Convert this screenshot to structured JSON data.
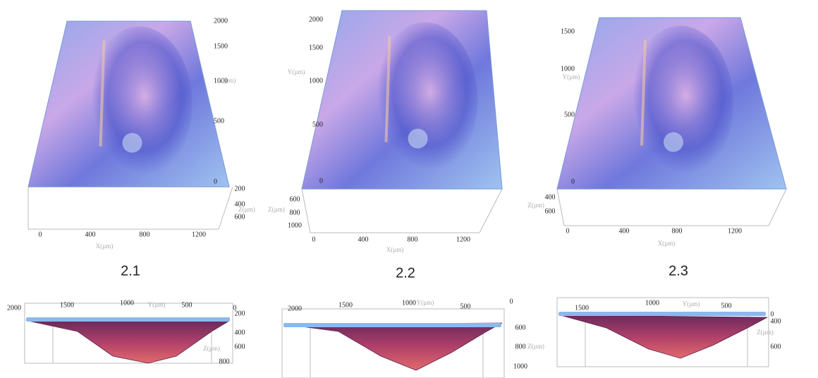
{
  "panels": [
    {
      "caption": "2.1",
      "top_view": {
        "x_ticks": [
          "0",
          "400",
          "800",
          "1200"
        ],
        "y_ticks": [
          "2000",
          "1500",
          "1000",
          "500",
          "0"
        ],
        "z_ticks": [
          "200",
          "400",
          "600"
        ],
        "x_label": "X(µm)",
        "y_label": "Y(µm)",
        "z_label": "Z(µm)"
      },
      "side_view": {
        "y_ticks": [
          "2000",
          "1500",
          "1000",
          "500",
          "0"
        ],
        "z_ticks": [
          "200",
          "400",
          "600",
          "800"
        ],
        "y_label": "Y(µm)",
        "z_label": "Z(µm)"
      }
    },
    {
      "caption": "2.2",
      "top_view": {
        "x_ticks": [
          "0",
          "400",
          "800",
          "1200"
        ],
        "y_ticks": [
          "2000",
          "1500",
          "1000",
          "500",
          "0"
        ],
        "z_ticks": [
          "600",
          "800",
          "1000"
        ],
        "x_label": "X(µm)",
        "y_label": "Y(µm)",
        "z_label": "Z(µm)"
      },
      "side_view": {
        "y_ticks": [
          "2000",
          "1500",
          "1000",
          "500",
          "0"
        ],
        "z_ticks": [
          "600",
          "800",
          "1000"
        ],
        "y_label": "Y(µm)",
        "z_label": "Z(µm)"
      }
    },
    {
      "caption": "2.3",
      "top_view": {
        "x_ticks": [
          "0",
          "400",
          "800",
          "1200"
        ],
        "y_ticks": [
          "1500",
          "1000",
          "500",
          "0"
        ],
        "z_ticks": [
          "400",
          "600"
        ],
        "x_label": "X(µm)",
        "y_label": "Y(µm)",
        "z_label": "Z(µm)"
      },
      "side_view": {
        "y_ticks": [
          "1500",
          "1000",
          "500",
          "0"
        ],
        "z_ticks": [
          "400",
          "600"
        ],
        "y_label": "Y(µm)",
        "z_label": "Z(µm)"
      }
    }
  ]
}
